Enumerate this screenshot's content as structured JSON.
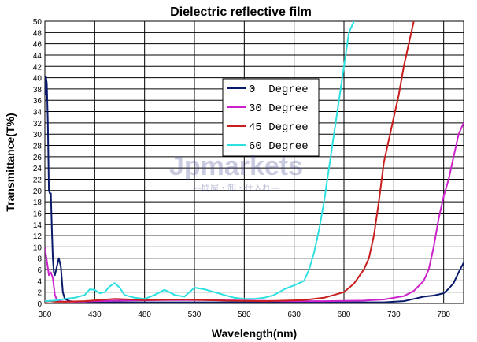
{
  "chart_data": {
    "type": "line",
    "title": "Dielectric reflective film",
    "xlabel": "Wavelength(nm)",
    "ylabel": "Transmittance(T%)",
    "xlim": [
      380,
      800
    ],
    "ylim": [
      0,
      50
    ],
    "xticks": [
      380,
      430,
      480,
      530,
      580,
      630,
      680,
      730,
      780
    ],
    "yticks": [
      0,
      2,
      4,
      6,
      8,
      10,
      12,
      14,
      16,
      18,
      20,
      22,
      24,
      26,
      28,
      30,
      32,
      34,
      36,
      38,
      40,
      42,
      44,
      46,
      48,
      50
    ],
    "grid": true,
    "legend_position": "center",
    "series": [
      {
        "name": "0  Degree",
        "color": "#0a1a6b",
        "x": [
          380,
          381,
          382,
          383,
          384,
          385,
          386,
          387,
          388,
          389,
          390,
          392,
          394,
          396,
          398,
          400,
          405,
          410,
          420,
          440,
          480,
          520,
          560,
          600,
          640,
          680,
          700,
          710,
          720,
          730,
          740,
          750,
          760,
          770,
          780,
          785,
          790,
          795,
          800
        ],
        "y": [
          37,
          40.2,
          39,
          32,
          20,
          19.5,
          19.5,
          13,
          8,
          5.5,
          5,
          6.5,
          8,
          6.5,
          2,
          0.8,
          0.4,
          0.3,
          0.3,
          0.2,
          0.2,
          0.2,
          0.2,
          0.2,
          0.2,
          0.2,
          0.2,
          0.2,
          0.2,
          0.3,
          0.4,
          0.8,
          1.2,
          1.4,
          1.8,
          2.6,
          3.6,
          5.5,
          7.2
        ]
      },
      {
        "name": "30 Degree",
        "color": "#cc22cc",
        "x": [
          380,
          382,
          384,
          386,
          388,
          390,
          392,
          395,
          400,
          410,
          430,
          460,
          500,
          540,
          580,
          620,
          660,
          700,
          720,
          740,
          750,
          760,
          765,
          770,
          775,
          780,
          785,
          790,
          795,
          800
        ],
        "y": [
          10,
          7.5,
          5,
          5.5,
          4.5,
          1.5,
          0.6,
          0.4,
          0.3,
          0.3,
          0.4,
          0.5,
          0.6,
          0.6,
          0.5,
          0.4,
          0.4,
          0.5,
          0.7,
          1.3,
          2.2,
          4,
          6,
          10,
          15,
          19,
          22,
          26,
          30,
          32
        ]
      },
      {
        "name": "45 Degree",
        "color": "#c81e1e",
        "x": [
          380,
          385,
          390,
          400,
          420,
          450,
          480,
          520,
          560,
          600,
          640,
          660,
          680,
          690,
          700,
          705,
          710,
          715,
          720,
          725,
          730,
          735,
          740,
          745,
          750
        ],
        "y": [
          0.3,
          0.4,
          0.3,
          0.3,
          0.4,
          0.8,
          0.6,
          0.7,
          0.5,
          0.4,
          0.6,
          1,
          2,
          3.5,
          6,
          8,
          12,
          18,
          25,
          29,
          33,
          37,
          42,
          46,
          50
        ]
      },
      {
        "name": "60 Degree",
        "color": "#2ee0e0",
        "x": [
          380,
          390,
          400,
          410,
          420,
          425,
          430,
          435,
          440,
          445,
          450,
          455,
          460,
          470,
          480,
          490,
          500,
          505,
          510,
          520,
          530,
          540,
          550,
          560,
          570,
          580,
          590,
          600,
          610,
          620,
          630,
          640,
          645,
          650,
          655,
          660,
          665,
          670,
          675,
          680,
          685,
          690
        ],
        "y": [
          0.4,
          0.5,
          0.8,
          1,
          1.5,
          2.5,
          2.4,
          1.8,
          2,
          3,
          3.6,
          2.8,
          1.5,
          1,
          0.8,
          1.5,
          2.4,
          2,
          1.5,
          1.2,
          2.8,
          2.5,
          2,
          1.5,
          1,
          0.8,
          0.8,
          1,
          1.5,
          2.5,
          3.2,
          4,
          6,
          9,
          13,
          18,
          24,
          30,
          36,
          42,
          48,
          50
        ]
      }
    ]
  },
  "watermark": {
    "brand": "Jpmarkets",
    "tagline": "—問屋・卸・仕入れ—"
  }
}
